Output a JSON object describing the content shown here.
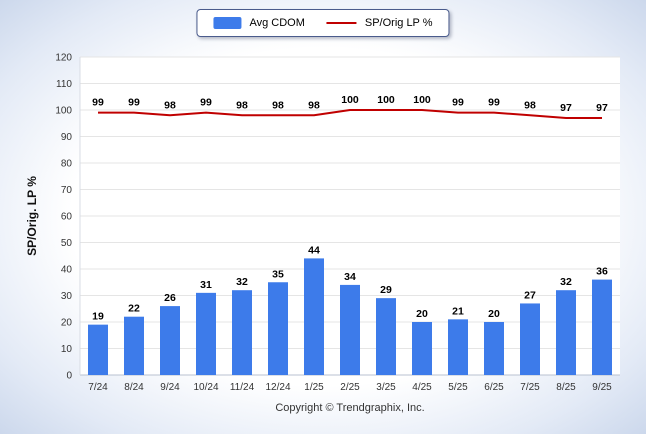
{
  "ylabel": "SP/Orig. LP %",
  "footer": "Copyright © Trendgraphix, Inc.",
  "colors": {
    "bar": "#3d7bea",
    "line": "#c00000"
  },
  "chart_data": {
    "type": "bar",
    "subtype": "bar+line combo",
    "categories": [
      "7/24",
      "8/24",
      "9/24",
      "10/24",
      "11/24",
      "12/24",
      "1/25",
      "2/25",
      "3/25",
      "4/25",
      "5/25",
      "6/25",
      "7/25",
      "8/25",
      "9/25"
    ],
    "series": [
      {
        "name": "Avg CDOM",
        "type": "bar",
        "color": "#3d7bea",
        "values": [
          19,
          22,
          26,
          31,
          32,
          35,
          44,
          34,
          29,
          20,
          21,
          20,
          27,
          32,
          36
        ]
      },
      {
        "name": "SP/Orig LP %",
        "type": "line",
        "color": "#c00000",
        "values": [
          99,
          99,
          98,
          99,
          98,
          98,
          98,
          100,
          100,
          100,
          99,
          99,
          98,
          97,
          97
        ]
      }
    ],
    "title": "",
    "xlabel": "",
    "ylabel": "SP/Orig. LP %",
    "ylim": [
      0,
      120
    ],
    "ytick_step": 10,
    "grid": true,
    "legend_position": "top",
    "data_labels": true
  }
}
